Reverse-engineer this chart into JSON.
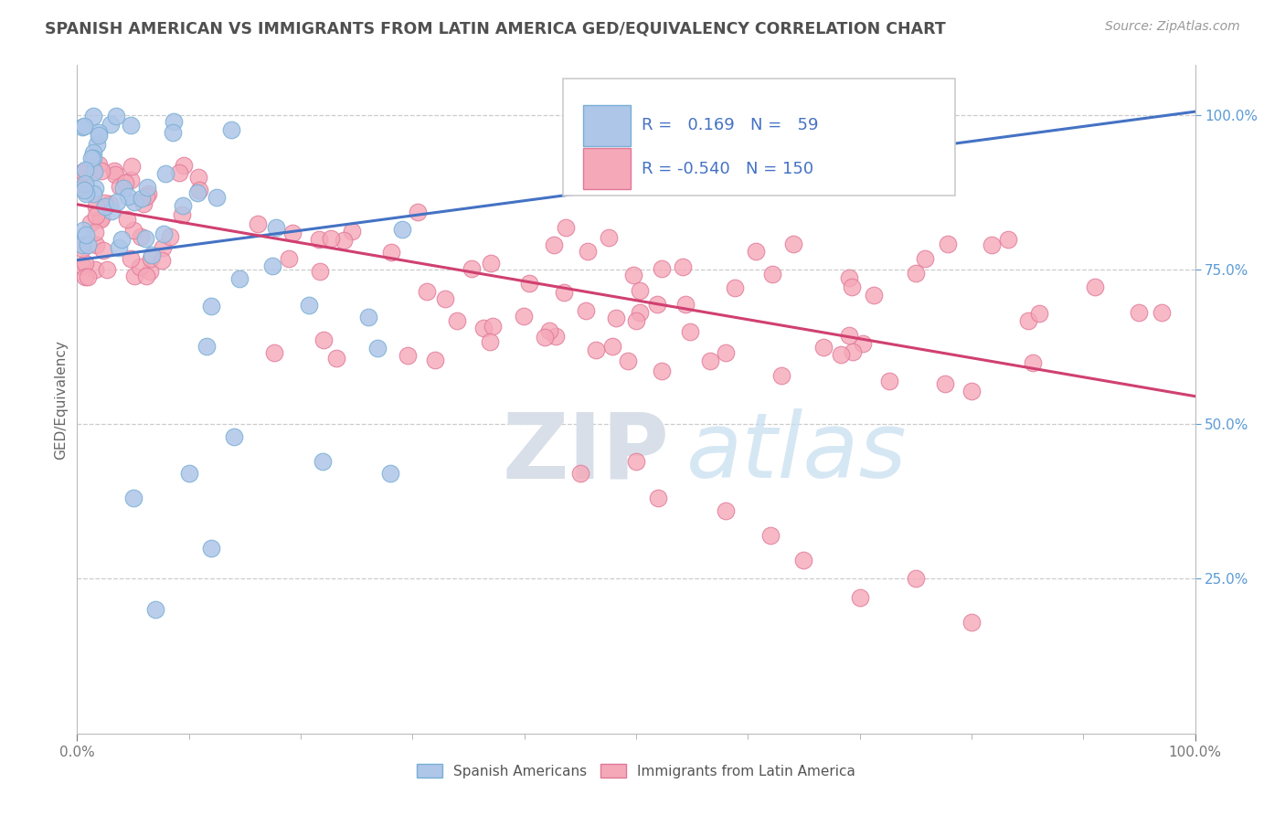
{
  "title": "SPANISH AMERICAN VS IMMIGRANTS FROM LATIN AMERICA GED/EQUIVALENCY CORRELATION CHART",
  "source": "Source: ZipAtlas.com",
  "ylabel": "GED/Equivalency",
  "xlim": [
    0.0,
    1.0
  ],
  "ylim": [
    0.0,
    1.08
  ],
  "blue_color": "#aec6e8",
  "blue_edge": "#7aafd4",
  "pink_color": "#f5a8b8",
  "pink_edge": "#e07898",
  "blue_line_color": "#4472c4",
  "pink_line_color": "#d04070",
  "R_blue": 0.169,
  "N_blue": 59,
  "R_pink": -0.54,
  "N_pink": 150,
  "legend_labels": [
    "Spanish Americans",
    "Immigrants from Latin America"
  ],
  "watermark_ZIP": "ZIP",
  "watermark_atlas": "atlas",
  "background_color": "#ffffff",
  "grid_color": "#cccccc",
  "title_color": "#505050",
  "blue_line_x0": 0.0,
  "blue_line_y0": 0.765,
  "blue_line_x1": 1.0,
  "blue_line_y1": 1.005,
  "pink_line_x0": 0.0,
  "pink_line_y0": 0.855,
  "pink_line_x1": 1.0,
  "pink_line_y1": 0.545,
  "ytick_positions": [
    0.25,
    0.5,
    0.75,
    1.0
  ],
  "ytick_labels": [
    "25.0%",
    "50.0%",
    "75.0%",
    "100.0%"
  ]
}
